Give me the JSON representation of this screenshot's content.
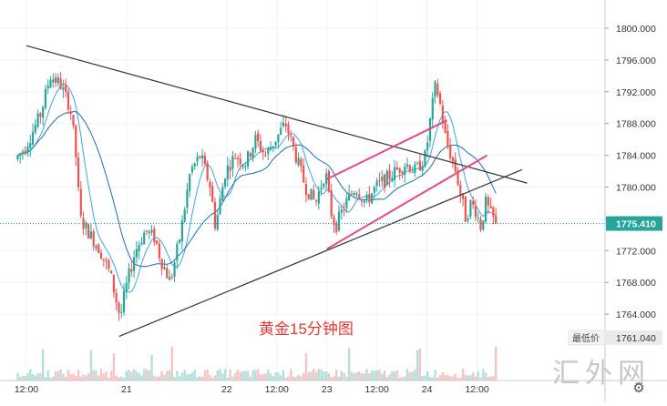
{
  "chart_data": {
    "type": "candlestick",
    "title": "黄金15分钟图",
    "xlabel": "",
    "ylabel": "",
    "ylim": [
      1758.0,
      1803.0
    ],
    "y_ticks": [
      "1800.000",
      "1796.000",
      "1792.000",
      "1788.000",
      "1784.000",
      "1780.000",
      "1776.000",
      "1772.000",
      "1768.000",
      "1764.000"
    ],
    "x_tick_labels": [
      {
        "label": "12:00",
        "x": 0.0
      },
      {
        "label": "21",
        "x": 0.2
      },
      {
        "label": "22",
        "x": 0.4
      },
      {
        "label": "12:00",
        "x": 0.5
      },
      {
        "label": "23",
        "x": 0.6
      },
      {
        "label": "12:00",
        "x": 0.7
      },
      {
        "label": "24",
        "x": 0.8
      },
      {
        "label": "12:00",
        "x": 0.9
      }
    ],
    "x_range": [
      -0.02,
      1.09
    ],
    "last_price": {
      "label": "1775.410",
      "value": 1775.41
    },
    "low_price": {
      "caption": "最低价",
      "label": "1761.040",
      "value": 1761.04
    },
    "watermark": "汇外网",
    "colors": {
      "up": "#26a69a",
      "down": "#ef5350",
      "ma_fast": "#3aa6e0",
      "ma_slow": "#1a6fb0",
      "trendline": "#333333",
      "channel": "#e64a8b",
      "last_price": "#26a69a",
      "title": "#e53935"
    },
    "price_keypoints": [
      {
        "x": -0.02,
        "p": 1783.5
      },
      {
        "x": 0.0,
        "p": 1785.0
      },
      {
        "x": 0.03,
        "p": 1789.0
      },
      {
        "x": 0.05,
        "p": 1794.0
      },
      {
        "x": 0.07,
        "p": 1793.0
      },
      {
        "x": 0.09,
        "p": 1790.0
      },
      {
        "x": 0.1,
        "p": 1785.0
      },
      {
        "x": 0.11,
        "p": 1776.0
      },
      {
        "x": 0.13,
        "p": 1774.0
      },
      {
        "x": 0.15,
        "p": 1772.0
      },
      {
        "x": 0.17,
        "p": 1769.0
      },
      {
        "x": 0.19,
        "p": 1763.5
      },
      {
        "x": 0.2,
        "p": 1767.0
      },
      {
        "x": 0.22,
        "p": 1772.0
      },
      {
        "x": 0.24,
        "p": 1774.5
      },
      {
        "x": 0.26,
        "p": 1773.5
      },
      {
        "x": 0.27,
        "p": 1771.0
      },
      {
        "x": 0.29,
        "p": 1768.0
      },
      {
        "x": 0.31,
        "p": 1774.0
      },
      {
        "x": 0.33,
        "p": 1782.0
      },
      {
        "x": 0.35,
        "p": 1784.0
      },
      {
        "x": 0.37,
        "p": 1780.0
      },
      {
        "x": 0.38,
        "p": 1775.0
      },
      {
        "x": 0.4,
        "p": 1782.0
      },
      {
        "x": 0.42,
        "p": 1784.0
      },
      {
        "x": 0.44,
        "p": 1783.0
      },
      {
        "x": 0.46,
        "p": 1786.0
      },
      {
        "x": 0.48,
        "p": 1784.0
      },
      {
        "x": 0.5,
        "p": 1786.0
      },
      {
        "x": 0.52,
        "p": 1788.0
      },
      {
        "x": 0.54,
        "p": 1784.0
      },
      {
        "x": 0.56,
        "p": 1780.0
      },
      {
        "x": 0.58,
        "p": 1778.0
      },
      {
        "x": 0.6,
        "p": 1782.0
      },
      {
        "x": 0.61,
        "p": 1777.0
      },
      {
        "x": 0.62,
        "p": 1775.0
      },
      {
        "x": 0.64,
        "p": 1778.0
      },
      {
        "x": 0.66,
        "p": 1780.0
      },
      {
        "x": 0.68,
        "p": 1778.0
      },
      {
        "x": 0.7,
        "p": 1780.0
      },
      {
        "x": 0.72,
        "p": 1781.0
      },
      {
        "x": 0.74,
        "p": 1782.0
      },
      {
        "x": 0.76,
        "p": 1783.0
      },
      {
        "x": 0.78,
        "p": 1782.0
      },
      {
        "x": 0.8,
        "p": 1784.0
      },
      {
        "x": 0.81,
        "p": 1789.0
      },
      {
        "x": 0.82,
        "p": 1793.0
      },
      {
        "x": 0.83,
        "p": 1790.0
      },
      {
        "x": 0.84,
        "p": 1786.0
      },
      {
        "x": 0.86,
        "p": 1782.0
      },
      {
        "x": 0.87,
        "p": 1779.0
      },
      {
        "x": 0.88,
        "p": 1776.0
      },
      {
        "x": 0.89,
        "p": 1778.0
      },
      {
        "x": 0.9,
        "p": 1777.0
      },
      {
        "x": 0.91,
        "p": 1775.0
      },
      {
        "x": 0.92,
        "p": 1778.0
      },
      {
        "x": 0.93,
        "p": 1776.5
      },
      {
        "x": 0.94,
        "p": 1775.4
      }
    ],
    "trendlines": [
      {
        "name": "upper-trendline",
        "from": {
          "x": 0.0,
          "p": 1797.8
        },
        "to": {
          "x": 1.0,
          "p": 1780.5
        }
      },
      {
        "name": "lower-trendline",
        "from": {
          "x": 0.185,
          "p": 1761.2
        },
        "to": {
          "x": 0.99,
          "p": 1782.2
        }
      },
      {
        "name": "channel-upper",
        "from": {
          "x": 0.6,
          "p": 1781.0
        },
        "to": {
          "x": 0.84,
          "p": 1788.4
        }
      },
      {
        "name": "channel-lower",
        "from": {
          "x": 0.6,
          "p": 1772.2
        },
        "to": {
          "x": 0.92,
          "p": 1784.0
        }
      }
    ]
  }
}
